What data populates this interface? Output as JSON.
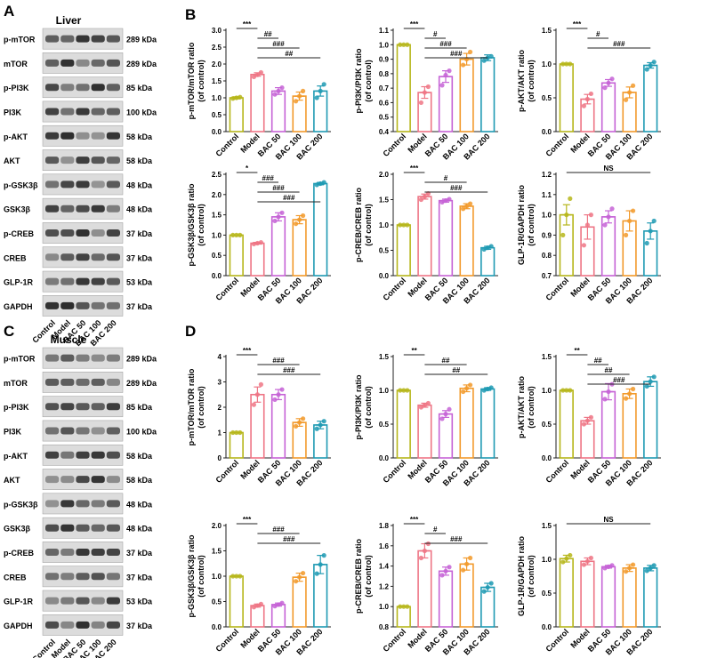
{
  "figure": {
    "panels": {
      "A": "A",
      "B": "B",
      "C": "C",
      "D": "D"
    },
    "group_labels": [
      "Control",
      "Model",
      "BAC 50",
      "BAC 100",
      "BAC 200"
    ],
    "group_colors": [
      "#b6b61a",
      "#ee7585",
      "#c663d6",
      "#f29a2c",
      "#1f9ab3"
    ],
    "blots": [
      {
        "tissue": "Liver",
        "rows": [
          {
            "protein": "p-mTOR",
            "mw": "289 kDa"
          },
          {
            "protein": "mTOR",
            "mw": "289 kDa"
          },
          {
            "protein": "p-PI3K",
            "mw": "85 kDa"
          },
          {
            "protein": "PI3K",
            "mw": "100 kDa"
          },
          {
            "protein": "p-AKT",
            "mw": "58 kDa"
          },
          {
            "protein": "AKT",
            "mw": "58 kDa"
          },
          {
            "protein": "p-GSK3β",
            "mw": "48 kDa"
          },
          {
            "protein": "GSK3β",
            "mw": "48 kDa"
          },
          {
            "protein": "p-CREB",
            "mw": "37 kDa"
          },
          {
            "protein": "CREB",
            "mw": "37 kDa"
          },
          {
            "protein": "GLP-1R",
            "mw": "53 kDa"
          },
          {
            "protein": "GAPDH",
            "mw": "37 kDa"
          }
        ]
      },
      {
        "tissue": "Muscle",
        "rows": [
          {
            "protein": "p-mTOR",
            "mw": "289 kDa"
          },
          {
            "protein": "mTOR",
            "mw": "289 kDa"
          },
          {
            "protein": "p-PI3K",
            "mw": "85 kDa"
          },
          {
            "protein": "PI3K",
            "mw": "100 kDa"
          },
          {
            "protein": "p-AKT",
            "mw": "58 kDa"
          },
          {
            "protein": "AKT",
            "mw": "58 kDa"
          },
          {
            "protein": "p-GSK3β",
            "mw": "48 kDa"
          },
          {
            "protein": "GSK3β",
            "mw": "48 kDa"
          },
          {
            "protein": "p-CREB",
            "mw": "37 kDa"
          },
          {
            "protein": "CREB",
            "mw": "37 kDa"
          },
          {
            "protein": "GLP-1R",
            "mw": "53 kDa"
          },
          {
            "protein": "GAPDH",
            "mw": "37 kDa"
          }
        ]
      }
    ]
  },
  "chart_data": [
    {
      "type": "bar",
      "panel": "B",
      "tissue": "Liver",
      "ylabel": "p-mTOR/mTOR ratio",
      "ylabel2": "(of control)",
      "categories": [
        "Control",
        "Model",
        "BAC 50",
        "BAC 100",
        "BAC 200"
      ],
      "values": [
        1.0,
        1.69,
        1.2,
        1.05,
        1.2
      ],
      "errors": [
        0.03,
        0.05,
        0.1,
        0.12,
        0.15
      ],
      "points": [
        [
          0.98,
          1.0,
          1.02
        ],
        [
          1.62,
          1.68,
          1.75
        ],
        [
          1.1,
          1.2,
          1.3
        ],
        [
          0.9,
          1.05,
          1.2
        ],
        [
          1.0,
          1.2,
          1.4
        ]
      ],
      "ylim": [
        0,
        3
      ],
      "yticks": [
        0,
        0.5,
        1.0,
        1.5,
        2.0,
        2.5,
        3.0
      ],
      "tick_decimals": 1,
      "significance": [
        {
          "from": 0,
          "to": 1,
          "label": "***"
        },
        {
          "from": 1,
          "to": 2,
          "label": "##"
        },
        {
          "from": 1,
          "to": 3,
          "label": "###"
        },
        {
          "from": 1,
          "to": 4,
          "label": "##"
        }
      ]
    },
    {
      "type": "bar",
      "panel": "B",
      "tissue": "Liver",
      "ylabel": "p-PI3K/PI3K ratio",
      "ylabel2": "(of control)",
      "categories": [
        "Control",
        "Model",
        "BAC 50",
        "BAC 100",
        "BAC 200"
      ],
      "values": [
        1.0,
        0.67,
        0.78,
        0.9,
        0.91
      ],
      "errors": [
        0.0,
        0.04,
        0.04,
        0.04,
        0.02
      ],
      "points": [
        [
          1.0,
          1.0,
          1.0
        ],
        [
          0.6,
          0.67,
          0.71
        ],
        [
          0.72,
          0.79,
          0.82
        ],
        [
          0.86,
          0.9,
          0.95
        ],
        [
          0.89,
          0.91,
          0.92
        ]
      ],
      "ylim": [
        0.4,
        1.1
      ],
      "yticks": [
        0.4,
        0.5,
        0.6,
        0.7,
        0.8,
        0.9,
        1.0,
        1.1
      ],
      "tick_decimals": 1,
      "significance": [
        {
          "from": 0,
          "to": 1,
          "label": "***"
        },
        {
          "from": 1,
          "to": 2,
          "label": "#"
        },
        {
          "from": 1,
          "to": 3,
          "label": "###"
        },
        {
          "from": 1,
          "to": 4,
          "label": "###"
        }
      ]
    },
    {
      "type": "bar",
      "panel": "B",
      "tissue": "Liver",
      "ylabel": "p-AKT/AKT ratio",
      "ylabel2": "(of control)",
      "categories": [
        "Control",
        "Model",
        "BAC 50",
        "BAC 100",
        "BAC 200"
      ],
      "values": [
        1.0,
        0.48,
        0.72,
        0.58,
        0.98
      ],
      "errors": [
        0.0,
        0.07,
        0.05,
        0.08,
        0.04
      ],
      "points": [
        [
          1.0,
          1.0,
          1.0
        ],
        [
          0.38,
          0.48,
          0.56
        ],
        [
          0.65,
          0.72,
          0.78
        ],
        [
          0.47,
          0.58,
          0.68
        ],
        [
          0.92,
          0.98,
          1.03
        ]
      ],
      "ylim": [
        0,
        1.5
      ],
      "yticks": [
        0,
        0.5,
        1.0,
        1.5
      ],
      "tick_decimals": 1,
      "significance": [
        {
          "from": 0,
          "to": 1,
          "label": "***"
        },
        {
          "from": 1,
          "to": 2,
          "label": "#"
        },
        {
          "from": 1,
          "to": 4,
          "label": "###"
        }
      ]
    },
    {
      "type": "bar",
      "panel": "B",
      "tissue": "Liver",
      "ylabel": "p-GSK3β/GSK3β ratio",
      "ylabel2": "(of control)",
      "categories": [
        "Control",
        "Model",
        "BAC 50",
        "BAC 100",
        "BAC 200"
      ],
      "values": [
        1.0,
        0.8,
        1.45,
        1.38,
        2.27
      ],
      "errors": [
        0.0,
        0.02,
        0.1,
        0.1,
        0.03
      ],
      "points": [
        [
          1.0,
          1.0,
          1.0
        ],
        [
          0.78,
          0.8,
          0.82
        ],
        [
          1.35,
          1.45,
          1.55
        ],
        [
          1.28,
          1.38,
          1.48
        ],
        [
          2.24,
          2.27,
          2.3
        ]
      ],
      "ylim": [
        0,
        2.5
      ],
      "yticks": [
        0,
        0.5,
        1.0,
        1.5,
        2.0,
        2.5
      ],
      "tick_decimals": 1,
      "significance": [
        {
          "from": 0,
          "to": 1,
          "label": "*"
        },
        {
          "from": 1,
          "to": 2,
          "label": "###"
        },
        {
          "from": 1,
          "to": 3,
          "label": "###"
        },
        {
          "from": 1,
          "to": 4,
          "label": "###"
        }
      ]
    },
    {
      "type": "bar",
      "panel": "B",
      "tissue": "Liver",
      "ylabel": "p-CREB/CREB ratio",
      "ylabel2": "(of control)",
      "categories": [
        "Control",
        "Model",
        "BAC 50",
        "BAC 100",
        "BAC 200"
      ],
      "values": [
        1.0,
        1.56,
        1.48,
        1.37,
        0.55
      ],
      "errors": [
        0.0,
        0.05,
        0.03,
        0.05,
        0.03
      ],
      "points": [
        [
          1.0,
          1.0,
          1.0
        ],
        [
          1.5,
          1.56,
          1.62
        ],
        [
          1.45,
          1.48,
          1.51
        ],
        [
          1.32,
          1.37,
          1.42
        ],
        [
          0.52,
          0.55,
          0.58
        ]
      ],
      "ylim": [
        0,
        2.0
      ],
      "yticks": [
        0,
        0.5,
        1.0,
        1.5,
        2.0
      ],
      "tick_decimals": 1,
      "significance": [
        {
          "from": 0,
          "to": 1,
          "label": "***"
        },
        {
          "from": 1,
          "to": 3,
          "label": "#"
        },
        {
          "from": 1,
          "to": 4,
          "label": "###"
        }
      ]
    },
    {
      "type": "bar",
      "panel": "B",
      "tissue": "Liver",
      "ylabel": "GLP-1R/GAPDH ratio",
      "ylabel2": "(of control)",
      "categories": [
        "Control",
        "Model",
        "BAC 50",
        "BAC 100",
        "BAC 200"
      ],
      "values": [
        1.0,
        0.94,
        0.99,
        0.97,
        0.92
      ],
      "errors": [
        0.05,
        0.06,
        0.03,
        0.05,
        0.04
      ],
      "points": [
        [
          0.9,
          1.0,
          1.08
        ],
        [
          0.85,
          0.95,
          1.0
        ],
        [
          0.95,
          0.99,
          1.03
        ],
        [
          0.9,
          0.97,
          1.02
        ],
        [
          0.86,
          0.92,
          0.97
        ]
      ],
      "ylim": [
        0.7,
        1.2
      ],
      "yticks": [
        0.7,
        0.8,
        0.9,
        1.0,
        1.1,
        1.2
      ],
      "tick_decimals": 1,
      "significance": [
        {
          "from": 0,
          "to": 4,
          "label": "NS"
        }
      ]
    },
    {
      "type": "bar",
      "panel": "D",
      "tissue": "Muscle",
      "ylabel": "p-mTOR/mTOR ratio",
      "ylabel2": "(of control)",
      "categories": [
        "Control",
        "Model",
        "BAC 50",
        "BAC 100",
        "BAC 200"
      ],
      "values": [
        1.0,
        2.5,
        2.5,
        1.4,
        1.3
      ],
      "errors": [
        0.0,
        0.3,
        0.2,
        0.15,
        0.15
      ],
      "points": [
        [
          1.0,
          1.0,
          1.0
        ],
        [
          2.1,
          2.5,
          2.9
        ],
        [
          2.3,
          2.5,
          2.7
        ],
        [
          1.25,
          1.4,
          1.55
        ],
        [
          1.15,
          1.3,
          1.45
        ]
      ],
      "ylim": [
        0,
        4
      ],
      "yticks": [
        0,
        1,
        2,
        3,
        4
      ],
      "tick_decimals": 0,
      "significance": [
        {
          "from": 0,
          "to": 1,
          "label": "***"
        },
        {
          "from": 1,
          "to": 3,
          "label": "###"
        },
        {
          "from": 1,
          "to": 4,
          "label": "###"
        }
      ]
    },
    {
      "type": "bar",
      "panel": "D",
      "tissue": "Muscle",
      "ylabel": "p-PI3K/PI3K ratio",
      "ylabel2": "(of control)",
      "categories": [
        "Control",
        "Model",
        "BAC 50",
        "BAC 100",
        "BAC 200"
      ],
      "values": [
        1.0,
        0.78,
        0.65,
        1.03,
        1.02
      ],
      "errors": [
        0.0,
        0.03,
        0.05,
        0.05,
        0.02
      ],
      "points": [
        [
          1.0,
          1.0,
          1.0
        ],
        [
          0.75,
          0.78,
          0.81
        ],
        [
          0.58,
          0.65,
          0.72
        ],
        [
          0.98,
          1.03,
          1.08
        ],
        [
          1.0,
          1.02,
          1.04
        ]
      ],
      "ylim": [
        0,
        1.5
      ],
      "yticks": [
        0,
        0.5,
        1.0,
        1.5
      ],
      "tick_decimals": 1,
      "significance": [
        {
          "from": 0,
          "to": 1,
          "label": "**"
        },
        {
          "from": 1,
          "to": 3,
          "label": "##"
        },
        {
          "from": 1,
          "to": 4,
          "label": "##"
        }
      ]
    },
    {
      "type": "bar",
      "panel": "D",
      "tissue": "Muscle",
      "ylabel": "p-AKT/AKT ratio",
      "ylabel2": "(of control)",
      "categories": [
        "Control",
        "Model",
        "BAC 50",
        "BAC 100",
        "BAC 200"
      ],
      "values": [
        1.0,
        0.55,
        0.98,
        0.95,
        1.13
      ],
      "errors": [
        0.0,
        0.05,
        0.12,
        0.07,
        0.07
      ],
      "points": [
        [
          1.0,
          1.0,
          1.0
        ],
        [
          0.5,
          0.55,
          0.6
        ],
        [
          0.87,
          0.98,
          1.09
        ],
        [
          0.88,
          0.95,
          1.02
        ],
        [
          1.06,
          1.13,
          1.2
        ]
      ],
      "ylim": [
        0,
        1.5
      ],
      "yticks": [
        0,
        0.5,
        1.0,
        1.5
      ],
      "tick_decimals": 1,
      "significance": [
        {
          "from": 0,
          "to": 1,
          "label": "**"
        },
        {
          "from": 1,
          "to": 2,
          "label": "##"
        },
        {
          "from": 1,
          "to": 3,
          "label": "##"
        },
        {
          "from": 1,
          "to": 4,
          "label": "###"
        }
      ]
    },
    {
      "type": "bar",
      "panel": "D",
      "tissue": "Muscle",
      "ylabel": "p-GSK3β/GSK3β ratio",
      "ylabel2": "(of control)",
      "categories": [
        "Control",
        "Model",
        "BAC 50",
        "BAC 100",
        "BAC 200"
      ],
      "values": [
        1.0,
        0.42,
        0.44,
        0.98,
        1.23
      ],
      "errors": [
        0.0,
        0.03,
        0.03,
        0.08,
        0.18
      ],
      "points": [
        [
          1.0,
          1.0,
          1.0
        ],
        [
          0.39,
          0.42,
          0.45
        ],
        [
          0.41,
          0.44,
          0.47
        ],
        [
          0.9,
          0.98,
          1.06
        ],
        [
          1.05,
          1.23,
          1.41
        ]
      ],
      "ylim": [
        0,
        2.0
      ],
      "yticks": [
        0,
        0.5,
        1.0,
        1.5,
        2.0
      ],
      "tick_decimals": 1,
      "significance": [
        {
          "from": 0,
          "to": 1,
          "label": "***"
        },
        {
          "from": 1,
          "to": 3,
          "label": "###"
        },
        {
          "from": 1,
          "to": 4,
          "label": "###"
        }
      ]
    },
    {
      "type": "bar",
      "panel": "D",
      "tissue": "Muscle",
      "ylabel": "p-CREB/CREB ratio",
      "ylabel2": "(of control)",
      "categories": [
        "Control",
        "Model",
        "BAC 50",
        "BAC 100",
        "BAC 200"
      ],
      "values": [
        1.0,
        1.55,
        1.35,
        1.42,
        1.19
      ],
      "errors": [
        0.0,
        0.07,
        0.04,
        0.06,
        0.04
      ],
      "points": [
        [
          1.0,
          1.0,
          1.0
        ],
        [
          1.48,
          1.55,
          1.62
        ],
        [
          1.31,
          1.35,
          1.39
        ],
        [
          1.36,
          1.42,
          1.48
        ],
        [
          1.15,
          1.19,
          1.23
        ]
      ],
      "ylim": [
        0.8,
        1.8
      ],
      "yticks": [
        0.8,
        1.0,
        1.2,
        1.4,
        1.6,
        1.8
      ],
      "tick_decimals": 1,
      "significance": [
        {
          "from": 0,
          "to": 1,
          "label": "***"
        },
        {
          "from": 1,
          "to": 2,
          "label": "#"
        },
        {
          "from": 1,
          "to": 4,
          "label": "###"
        }
      ]
    },
    {
      "type": "bar",
      "panel": "D",
      "tissue": "Muscle",
      "ylabel": "GLP-1R/GAPDH ratio",
      "ylabel2": "(of control)",
      "categories": [
        "Control",
        "Model",
        "BAC 50",
        "BAC 100",
        "BAC 200"
      ],
      "values": [
        1.01,
        0.97,
        0.89,
        0.87,
        0.87
      ],
      "errors": [
        0.05,
        0.05,
        0.02,
        0.05,
        0.04
      ],
      "points": [
        [
          0.96,
          1.01,
          1.06
        ],
        [
          0.92,
          0.97,
          1.02
        ],
        [
          0.87,
          0.89,
          0.91
        ],
        [
          0.82,
          0.87,
          0.92
        ],
        [
          0.83,
          0.87,
          0.91
        ]
      ],
      "ylim": [
        0,
        1.5
      ],
      "yticks": [
        0,
        0.5,
        1.0,
        1.5
      ],
      "tick_decimals": 1,
      "significance": [
        {
          "from": 0,
          "to": 4,
          "label": "NS"
        }
      ]
    }
  ]
}
